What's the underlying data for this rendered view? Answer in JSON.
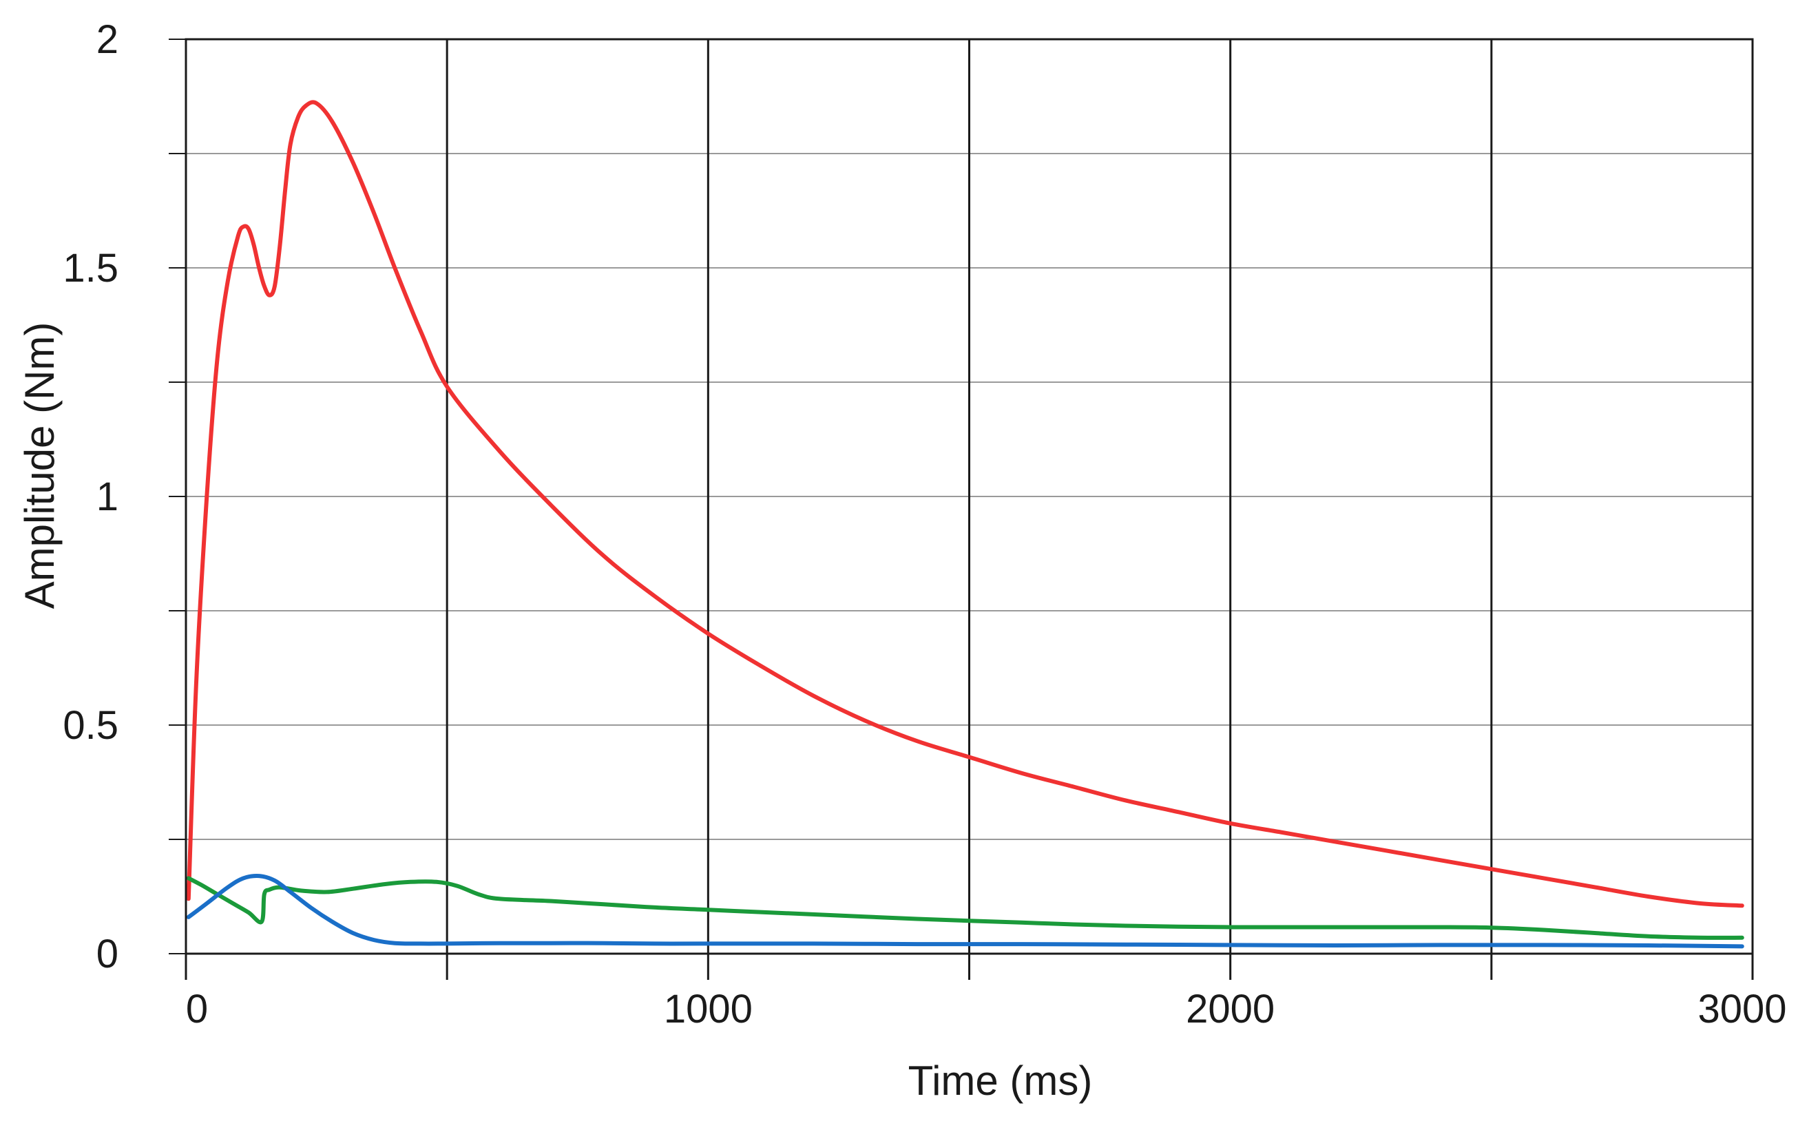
{
  "chart_data": {
    "type": "line",
    "title": "",
    "xlabel": "Time (ms)",
    "ylabel": "Amplitude (Nm)",
    "xlim": [
      0,
      3000
    ],
    "ylim": [
      0,
      2
    ],
    "x_ticks": [
      0,
      1000,
      2000,
      3000
    ],
    "x_tick_labels": [
      "0",
      "1000",
      "2000",
      "3000"
    ],
    "x_minor_ticks": [
      500,
      1500,
      2500
    ],
    "y_ticks": [
      0,
      0.5,
      1,
      1.5,
      2
    ],
    "y_tick_labels": [
      "0",
      "0.5",
      "1",
      "1.5",
      "2"
    ],
    "y_minor_ticks": [
      0.25,
      0.75,
      1.25,
      1.75
    ],
    "grid": true,
    "legend": "none",
    "series": [
      {
        "color": "#f03232",
        "x": [
          5,
          20,
          40,
          60,
          80,
          100,
          110,
          120,
          130,
          140,
          150,
          160,
          170,
          180,
          190,
          200,
          215,
          230,
          250,
          280,
          320,
          360,
          400,
          450,
          500,
          600,
          700,
          800,
          900,
          1000,
          1100,
          1200,
          1300,
          1400,
          1500,
          1600,
          1700,
          1800,
          1900,
          2000,
          2100,
          2200,
          2300,
          2400,
          2500,
          2600,
          2700,
          2800,
          2900,
          2980
        ],
        "y": [
          0.12,
          0.6,
          1.0,
          1.3,
          1.47,
          1.57,
          1.59,
          1.585,
          1.55,
          1.5,
          1.46,
          1.44,
          1.46,
          1.55,
          1.67,
          1.77,
          1.83,
          1.855,
          1.86,
          1.82,
          1.73,
          1.62,
          1.5,
          1.36,
          1.24,
          1.1,
          0.98,
          0.87,
          0.78,
          0.7,
          0.63,
          0.565,
          0.51,
          0.465,
          0.43,
          0.395,
          0.365,
          0.335,
          0.31,
          0.285,
          0.265,
          0.245,
          0.225,
          0.205,
          0.185,
          0.165,
          0.145,
          0.125,
          0.11,
          0.105
        ]
      },
      {
        "color": "#1a9a3a",
        "x": [
          5,
          30,
          60,
          90,
          120,
          145,
          150,
          160,
          180,
          220,
          270,
          320,
          380,
          430,
          480,
          520,
          560,
          600,
          700,
          800,
          900,
          1000,
          1100,
          1200,
          1300,
          1400,
          1500,
          1600,
          1700,
          1800,
          1900,
          2000,
          2100,
          2200,
          2300,
          2400,
          2500,
          2600,
          2700,
          2800,
          2900,
          2980
        ],
        "y": [
          0.165,
          0.15,
          0.13,
          0.11,
          0.09,
          0.07,
          0.13,
          0.14,
          0.145,
          0.138,
          0.135,
          0.142,
          0.152,
          0.157,
          0.157,
          0.148,
          0.13,
          0.12,
          0.115,
          0.108,
          0.101,
          0.096,
          0.091,
          0.086,
          0.081,
          0.076,
          0.072,
          0.068,
          0.064,
          0.061,
          0.059,
          0.058,
          0.058,
          0.058,
          0.058,
          0.058,
          0.057,
          0.052,
          0.045,
          0.038,
          0.035,
          0.035
        ]
      },
      {
        "color": "#1a6fc8",
        "x": [
          5,
          40,
          80,
          110,
          140,
          170,
          200,
          240,
          280,
          320,
          360,
          400,
          450,
          500,
          600,
          700,
          800,
          900,
          1000,
          1200,
          1400,
          1600,
          1800,
          2000,
          2200,
          2400,
          2600,
          2800,
          2980
        ],
        "y": [
          0.08,
          0.11,
          0.145,
          0.165,
          0.17,
          0.16,
          0.135,
          0.1,
          0.07,
          0.045,
          0.03,
          0.023,
          0.022,
          0.022,
          0.023,
          0.023,
          0.023,
          0.022,
          0.022,
          0.022,
          0.021,
          0.021,
          0.02,
          0.019,
          0.018,
          0.019,
          0.019,
          0.018,
          0.016
        ]
      }
    ]
  }
}
